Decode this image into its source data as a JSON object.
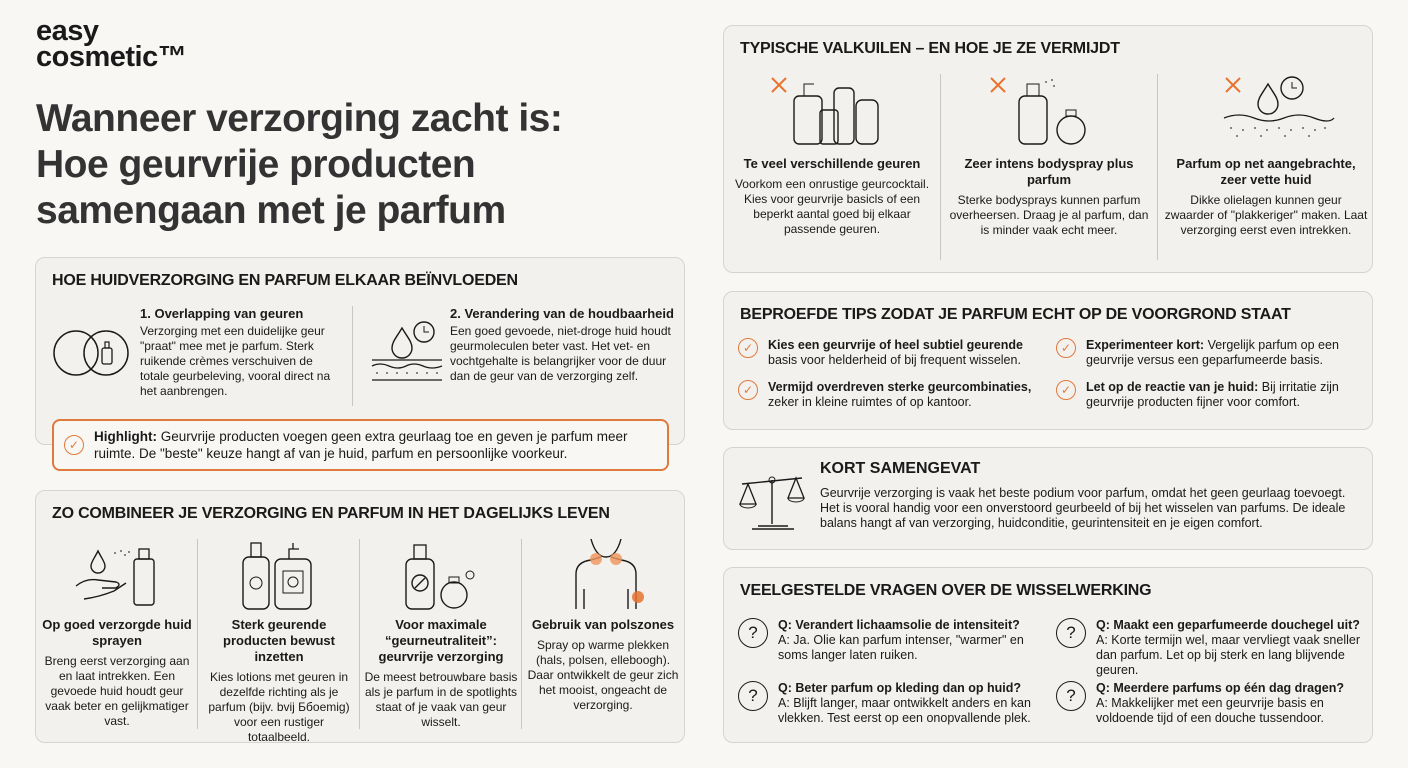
{
  "logo": {
    "line1": "easy",
    "line2": "cosmetic™"
  },
  "title": {
    "line1": "Wanneer verzorging zacht is:",
    "line2": "Hoe geurvrije producten",
    "line3": "samengaan met je parfum"
  },
  "colors": {
    "accent": "#e07a3c",
    "card_bg": "#f2f1ed",
    "page_bg": "#f8f7f4"
  },
  "influence": {
    "heading": "HOE HUIDVERZORGING EN PARFUM ELKAAR BEÏNVLOEDEN",
    "items": [
      {
        "icon": "overlapping-circles-icon",
        "title": "1. Overlapping van geuren",
        "text": "Verzorging met een duidelijke geur \"praat\" mee met je parfum. Sterk ruikende crèmes verschuiven de totale geurbeleving, vooral direct na het aanbrengen."
      },
      {
        "icon": "skin-drop-clock-icon",
        "title": "2. Verandering van de houdbaarheid",
        "text": "Een goed gevoede, niet-droge huid houdt geurmoleculen beter vast. Het vet- en vochtgehalte is belangrijker voor de duur dan de geur van de verzorging zelf."
      }
    ],
    "highlight": {
      "label": "Highlight:",
      "text": " Geurvrije producten voegen geen extra geurlaag toe en geven je parfum meer ruimte. De \"beste\" keuze hangt af van je huid, parfum en persoonlijke voorkeur."
    }
  },
  "combine": {
    "heading": "ZO COMBINEER JE VERZORGING EN PARFUM IN HET DAGELIJKS LEVEN",
    "items": [
      {
        "icon": "hand-spray-icon",
        "title": "Op goed verzorgde huid sprayen",
        "text": "Breng eerst verzorging aan en laat intrekken. Een gevoede huid houdt geur vaak beter en gelijkmatiger vast."
      },
      {
        "icon": "floral-bottles-icon",
        "title": "Sterk geurende producten bewust inzetten",
        "text": "Kies lotions met geuren in dezelfde richting als je parfum (bijv. bvij Ббoemig) voor een rustiger totaalbeeld."
      },
      {
        "icon": "fragrance-free-bottle-icon",
        "title": "Voor maximale “geurneutraliteit”: geurvrije verzorging",
        "text": "De meest betrouwbare basis als je parfum in de spotlights staat of je vaak van geur wisselt."
      },
      {
        "icon": "pulse-points-body-icon",
        "title": "Gebruik van polszones",
        "text": "Spray op warme plekken (hals, polsen, elleboogh). Daar ontwikkelt de geur zich het mooist, ongeacht de verzorging."
      }
    ]
  },
  "pitfalls": {
    "heading": "TYPISCHE VALKUILEN – EN HOE JE ZE VERMIJDT",
    "items": [
      {
        "icon": "many-bottles-icon",
        "title": "Te veel verschillende geuren",
        "text": "Voorkom een onrustige geurcocktail. Kies voor geurvrije basicls of een beperkt aantal goed bij elkaar passende geuren."
      },
      {
        "icon": "bodyspray-perfume-icon",
        "title": "Zeer intens bodyspray plus parfum",
        "text": "Sterke bodysprays kunnen parfum overheersen. Draag je al parfum, dan is minder vaak echt meer."
      },
      {
        "icon": "oily-skin-icon",
        "title": "Parfum op net aangebrachte, zeer vette huid",
        "text": "Dikke olielagen kunnen geur zwaarder of \"plakkeriger\" maken. Laat verzorging eerst even intrekken."
      }
    ]
  },
  "tips": {
    "heading": "BEPROEFDE TIPS ZODAT JE PARFUM ECHT OP DE VOORGROND STAAT",
    "items": [
      {
        "bold": "Kies een geurvrije of heel subtiel geurende",
        "text": " basis voor helderheid of bij frequent wisselen."
      },
      {
        "bold": "Experimenteer kort:",
        "text": " Vergelijk parfum op een geurvrije versus een geparfumeerde basis."
      },
      {
        "bold": "Vermijd overdreven sterke geurcombinaties,",
        "text": " zeker in kleine ruimtes of op kantoor."
      },
      {
        "bold": "Let op de reactie van je huid:",
        "text": " Bij irritatie zijn geurvrije producten fijner voor comfort."
      }
    ]
  },
  "summary": {
    "heading": "KORT SAMENGEVAT",
    "icon": "balance-scale-icon",
    "text": "Geurvrije verzorging is vaak het beste podium voor parfum, omdat het geen geurlaag toevoegt. Het is vooral handig voor een onverstoord geurbeeld of bij het wisselen van parfums. De ideale balans hangt af van verzorging, huidconditie, geurintensiteit en je eigen comfort."
  },
  "faq": {
    "heading": "VEELGESTELDE VRAGEN OVER DE WISSELWERKING",
    "items": [
      {
        "q": "Q: Verandert lichaamsolie de intensiteit?",
        "a": "A:  Ja. Olie kan parfum intenser, \"warmer\" en soms langer laten ruiken."
      },
      {
        "q": "Q: Maakt een geparfumeerde douchegel uit?",
        "a": "A: Korte termijn wel, maar vervliegt vaak sneller dan parfum. Let op bij sterk en lang blijvende geuren."
      },
      {
        "q": "Q: Beter parfum op kleding dan op huid?",
        "a": "A: Blijft langer, maar ontwikkelt anders en kan vlekken. Test eerst op een onopvallende plek."
      },
      {
        "q": "Q: Meerdere parfums op één dag dragen?",
        "a": "A: Makkelijker met een geurvrije basis en voldoende tijd of een douche tussendoor."
      }
    ]
  }
}
